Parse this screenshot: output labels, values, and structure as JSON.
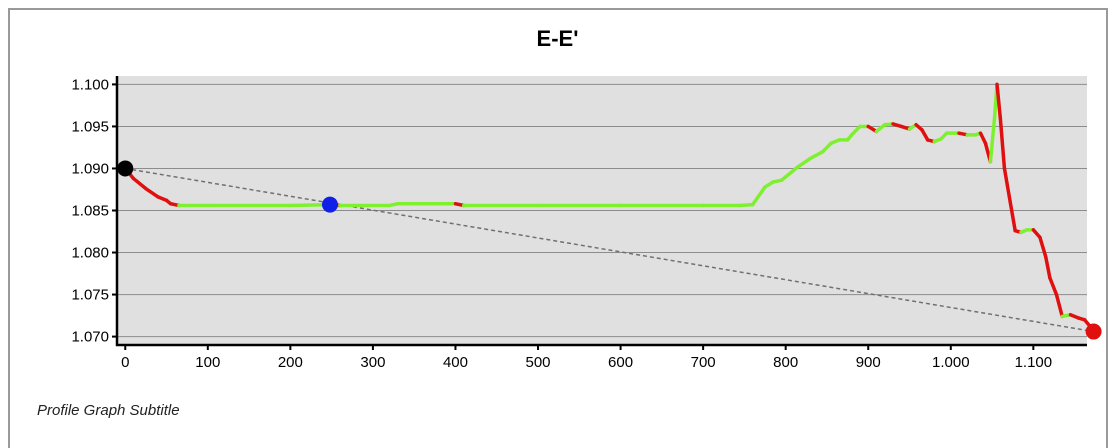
{
  "chart_data": {
    "type": "line",
    "title": "E-E'",
    "subtitle": "Profile Graph Subtitle",
    "xlabel": "",
    "ylabel": "",
    "xlim": [
      -10,
      1165
    ],
    "ylim": [
      1.069,
      1.101
    ],
    "x_ticks": [
      0,
      100,
      200,
      300,
      400,
      500,
      600,
      700,
      800,
      900,
      1000,
      1100
    ],
    "x_tick_labels": [
      "0",
      "100",
      "200",
      "300",
      "400",
      "500",
      "600",
      "700",
      "800",
      "900",
      "1.000",
      "1.100"
    ],
    "y_ticks": [
      1.07,
      1.075,
      1.08,
      1.085,
      1.09,
      1.095,
      1.1
    ],
    "y_tick_labels": [
      "1.070",
      "1.075",
      "1.080",
      "1.085",
      "1.090",
      "1.095",
      "1.100"
    ],
    "grid": "horizontal",
    "colors": {
      "plot_background": "#e0e0e0",
      "up_slope": "#7ff030",
      "down_slope": "#e01010",
      "grid": "#8c8c8c",
      "reference_line": "#707070"
    },
    "profile": [
      [
        0,
        1.09
      ],
      [
        10,
        1.0888
      ],
      [
        25,
        1.0876
      ],
      [
        40,
        1.0866
      ],
      [
        50,
        1.0862
      ],
      [
        55,
        1.0858
      ],
      [
        65,
        1.0856
      ],
      [
        100,
        1.0856
      ],
      [
        200,
        1.0856
      ],
      [
        250,
        1.0857
      ],
      [
        260,
        1.0856
      ],
      [
        320,
        1.0856
      ],
      [
        330,
        1.0858
      ],
      [
        400,
        1.0858
      ],
      [
        410,
        1.0856
      ],
      [
        500,
        1.0856
      ],
      [
        600,
        1.0856
      ],
      [
        700,
        1.0856
      ],
      [
        745,
        1.0856
      ],
      [
        760,
        1.0857
      ],
      [
        765,
        1.0864
      ],
      [
        775,
        1.0878
      ],
      [
        785,
        1.0884
      ],
      [
        795,
        1.0886
      ],
      [
        800,
        1.089
      ],
      [
        815,
        1.0902
      ],
      [
        830,
        1.0912
      ],
      [
        845,
        1.092
      ],
      [
        855,
        1.093
      ],
      [
        865,
        1.0934
      ],
      [
        875,
        1.0934
      ],
      [
        880,
        1.094
      ],
      [
        890,
        1.095
      ],
      [
        900,
        1.095
      ],
      [
        910,
        1.0944
      ],
      [
        920,
        1.0952
      ],
      [
        930,
        1.0953
      ],
      [
        940,
        1.095
      ],
      [
        950,
        1.0947
      ],
      [
        958,
        1.0952
      ],
      [
        965,
        1.0946
      ],
      [
        972,
        1.0934
      ],
      [
        980,
        1.0932
      ],
      [
        988,
        1.0935
      ],
      [
        995,
        1.0942
      ],
      [
        1010,
        1.0942
      ],
      [
        1020,
        1.094
      ],
      [
        1030,
        1.094
      ],
      [
        1036,
        1.0942
      ],
      [
        1042,
        1.093
      ],
      [
        1048,
        1.0908
      ],
      [
        1053,
        1.096
      ],
      [
        1056,
        1.1
      ],
      [
        1060,
        1.096
      ],
      [
        1065,
        1.09
      ],
      [
        1072,
        1.086
      ],
      [
        1078,
        1.0826
      ],
      [
        1085,
        1.0824
      ],
      [
        1092,
        1.0827
      ],
      [
        1100,
        1.0827
      ],
      [
        1108,
        1.0818
      ],
      [
        1115,
        1.0795
      ],
      [
        1120,
        1.077
      ],
      [
        1128,
        1.075
      ],
      [
        1135,
        1.0724
      ],
      [
        1145,
        1.0726
      ],
      [
        1155,
        1.0722
      ],
      [
        1162,
        1.072
      ],
      [
        1168,
        1.0713
      ],
      [
        1173,
        1.0706
      ]
    ],
    "reference_line": [
      [
        0,
        1.09
      ],
      [
        1173,
        1.0706
      ]
    ],
    "markers": [
      {
        "x": 0,
        "y": 1.09,
        "color": "#000000"
      },
      {
        "x": 248,
        "y": 1.0857,
        "color": "#1020e8"
      },
      {
        "x": 1173,
        "y": 1.0706,
        "color": "#e01010"
      }
    ]
  }
}
